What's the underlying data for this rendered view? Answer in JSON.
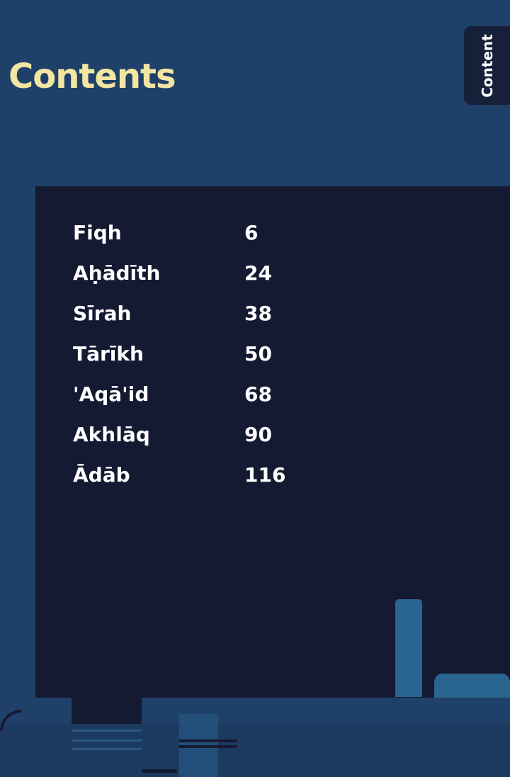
{
  "header": {
    "title": "Contents",
    "side_tab": "Content"
  },
  "contents": [
    {
      "label": "Fiqh",
      "page": "6"
    },
    {
      "label": "Aḥādīth",
      "page": "24"
    },
    {
      "label": "Sīrah",
      "page": "38"
    },
    {
      "label": "Tārīkh",
      "page": "50"
    },
    {
      "label": "'Aqā'id",
      "page": "68"
    },
    {
      "label": "Akhlāq",
      "page": "90"
    },
    {
      "label": "Ādāb",
      "page": "116"
    }
  ],
  "colors": {
    "background": "#1f4068",
    "panel": "#151a33",
    "title": "#f3e6a3",
    "accent_shapes": "#2a6590"
  }
}
